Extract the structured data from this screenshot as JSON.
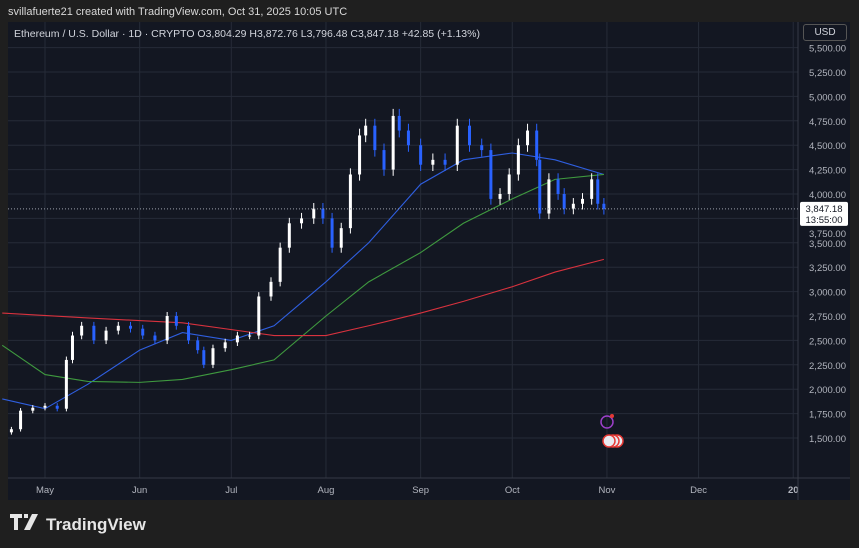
{
  "credit": "svillafuerte21 created with TradingView.com, Oct 31, 2025 10:05 UTC",
  "legend": "Ethereum / U.S. Dollar · 1D · CRYPTO  O3,804.29  H3,872.76  L3,796.48  C3,847.18  +42.85 (+1.13%)",
  "currency_button": "USD",
  "last_price": "3,847.18",
  "countdown": "13:55:00",
  "logo_text": "TradingView",
  "colors": {
    "up": "#ffffff",
    "down": "#2962ff",
    "ma_blue": "#2f5fe0",
    "ma_green": "#3f9a3f",
    "ma_red": "#d8323e",
    "last_price_line": "#9aa0aa"
  },
  "chart_data": {
    "type": "candlestick",
    "symbol": "ETH/USD",
    "interval": "1D",
    "ylim": [
      1350,
      5450
    ],
    "y_ticks": [
      "1,500.00",
      "1,750.00",
      "2,000.00",
      "2,250.00",
      "2,500.00",
      "2,750.00",
      "3,000.00",
      "3,250.00",
      "3,500.00",
      "3,750.00",
      "4,000.00",
      "4,250.00",
      "4,500.00",
      "4,750.00",
      "5,000.00",
      "5,250.00",
      "5,500.00"
    ],
    "x_ticks": [
      {
        "date": "2025-05-01",
        "label": "May"
      },
      {
        "date": "2025-06-01",
        "label": "Jun"
      },
      {
        "date": "2025-07-01",
        "label": "Jul"
      },
      {
        "date": "2025-08-01",
        "label": "Aug"
      },
      {
        "date": "2025-09-01",
        "label": "Sep"
      },
      {
        "date": "2025-10-01",
        "label": "Oct"
      },
      {
        "date": "2025-11-01",
        "label": "Nov"
      },
      {
        "date": "2025-12-01",
        "label": "Dec"
      },
      {
        "date": "2026-01-01",
        "label": "20"
      }
    ],
    "closes": [
      [
        "2025-04-20",
        1590
      ],
      [
        "2025-04-23",
        1780
      ],
      [
        "2025-04-27",
        1810
      ],
      [
        "2025-05-01",
        1830
      ],
      [
        "2025-05-05",
        1800
      ],
      [
        "2025-05-08",
        2300
      ],
      [
        "2025-05-10",
        2550
      ],
      [
        "2025-05-13",
        2650
      ],
      [
        "2025-05-17",
        2500
      ],
      [
        "2025-05-21",
        2600
      ],
      [
        "2025-05-25",
        2650
      ],
      [
        "2025-05-29",
        2620
      ],
      [
        "2025-06-02",
        2550
      ],
      [
        "2025-06-06",
        2500
      ],
      [
        "2025-06-10",
        2750
      ],
      [
        "2025-06-13",
        2650
      ],
      [
        "2025-06-17",
        2500
      ],
      [
        "2025-06-20",
        2400
      ],
      [
        "2025-06-22",
        2250
      ],
      [
        "2025-06-25",
        2420
      ],
      [
        "2025-06-29",
        2480
      ],
      [
        "2025-07-03",
        2550
      ],
      [
        "2025-07-07",
        2550
      ],
      [
        "2025-07-10",
        2950
      ],
      [
        "2025-07-14",
        3100
      ],
      [
        "2025-07-17",
        3450
      ],
      [
        "2025-07-20",
        3700
      ],
      [
        "2025-07-24",
        3750
      ],
      [
        "2025-07-28",
        3850
      ],
      [
        "2025-07-31",
        3750
      ],
      [
        "2025-08-03",
        3450
      ],
      [
        "2025-08-06",
        3650
      ],
      [
        "2025-08-09",
        4200
      ],
      [
        "2025-08-12",
        4600
      ],
      [
        "2025-08-14",
        4700
      ],
      [
        "2025-08-17",
        4450
      ],
      [
        "2025-08-20",
        4250
      ],
      [
        "2025-08-23",
        4800
      ],
      [
        "2025-08-25",
        4650
      ],
      [
        "2025-08-28",
        4500
      ],
      [
        "2025-09-01",
        4300
      ],
      [
        "2025-09-05",
        4350
      ],
      [
        "2025-09-09",
        4300
      ],
      [
        "2025-09-13",
        4700
      ],
      [
        "2025-09-17",
        4500
      ],
      [
        "2025-09-21",
        4450
      ],
      [
        "2025-09-24",
        3950
      ],
      [
        "2025-09-27",
        4000
      ],
      [
        "2025-09-30",
        4200
      ],
      [
        "2025-10-03",
        4500
      ],
      [
        "2025-10-06",
        4650
      ],
      [
        "2025-10-09",
        4350
      ],
      [
        "2025-10-10",
        3800
      ],
      [
        "2025-10-13",
        4150
      ],
      [
        "2025-10-16",
        4000
      ],
      [
        "2025-10-18",
        3850
      ],
      [
        "2025-10-21",
        3900
      ],
      [
        "2025-10-24",
        3950
      ],
      [
        "2025-10-27",
        4150
      ],
      [
        "2025-10-29",
        3900
      ],
      [
        "2025-10-31",
        3847.18
      ]
    ],
    "moving_averages": [
      {
        "color": "#2f5fe0",
        "points": [
          [
            "2025-04-17",
            1900
          ],
          [
            "2025-05-01",
            1800
          ],
          [
            "2025-05-15",
            2050
          ],
          [
            "2025-06-01",
            2400
          ],
          [
            "2025-06-15",
            2580
          ],
          [
            "2025-07-01",
            2500
          ],
          [
            "2025-07-15",
            2650
          ],
          [
            "2025-08-01",
            3100
          ],
          [
            "2025-08-15",
            3500
          ],
          [
            "2025-09-01",
            4100
          ],
          [
            "2025-09-15",
            4350
          ],
          [
            "2025-10-01",
            4420
          ],
          [
            "2025-10-15",
            4350
          ],
          [
            "2025-10-31",
            4200
          ]
        ]
      },
      {
        "color": "#3f9a3f",
        "points": [
          [
            "2025-04-17",
            2450
          ],
          [
            "2025-05-01",
            2150
          ],
          [
            "2025-05-15",
            2080
          ],
          [
            "2025-06-01",
            2070
          ],
          [
            "2025-06-15",
            2100
          ],
          [
            "2025-07-01",
            2200
          ],
          [
            "2025-07-15",
            2300
          ],
          [
            "2025-08-01",
            2750
          ],
          [
            "2025-08-15",
            3100
          ],
          [
            "2025-09-01",
            3400
          ],
          [
            "2025-09-15",
            3700
          ],
          [
            "2025-10-01",
            3950
          ],
          [
            "2025-10-15",
            4150
          ],
          [
            "2025-10-31",
            4200
          ]
        ]
      },
      {
        "color": "#d8323e",
        "points": [
          [
            "2025-04-17",
            2780
          ],
          [
            "2025-05-15",
            2730
          ],
          [
            "2025-06-15",
            2680
          ],
          [
            "2025-07-15",
            2550
          ],
          [
            "2025-08-01",
            2550
          ],
          [
            "2025-08-15",
            2650
          ],
          [
            "2025-09-01",
            2780
          ],
          [
            "2025-09-15",
            2900
          ],
          [
            "2025-10-01",
            3050
          ],
          [
            "2025-10-15",
            3200
          ],
          [
            "2025-10-31",
            3330
          ]
        ]
      }
    ]
  }
}
